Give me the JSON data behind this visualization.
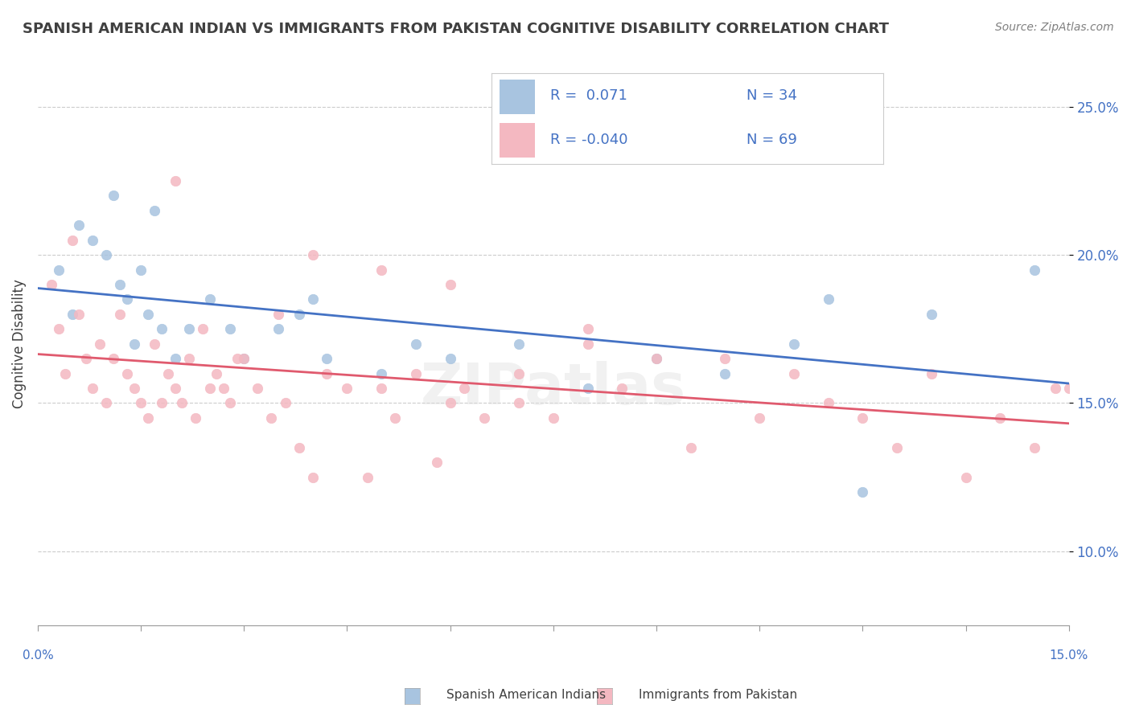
{
  "title": "SPANISH AMERICAN INDIAN VS IMMIGRANTS FROM PAKISTAN COGNITIVE DISABILITY CORRELATION CHART",
  "source": "Source: ZipAtlas.com",
  "ylabel": "Cognitive Disability",
  "xlim": [
    0.0,
    15.0
  ],
  "ylim": [
    7.5,
    26.5
  ],
  "yticks": [
    10.0,
    15.0,
    20.0,
    25.0
  ],
  "ytick_labels": [
    "10.0%",
    "15.0%",
    "20.0%",
    "25.0%"
  ],
  "series1_color": "#a8c4e0",
  "series1_line_color": "#4472c4",
  "series1_R": 0.071,
  "series1_N": 34,
  "series2_color": "#f4b8c1",
  "series2_line_color": "#e05a6e",
  "series2_R": -0.04,
  "series2_N": 69,
  "blue_scatter_x": [
    0.3,
    0.5,
    0.6,
    0.8,
    1.0,
    1.1,
    1.2,
    1.3,
    1.4,
    1.5,
    1.6,
    1.7,
    1.8,
    2.0,
    2.2,
    2.5,
    2.8,
    3.0,
    3.5,
    3.8,
    4.0,
    4.2,
    5.0,
    5.5,
    6.0,
    7.0,
    8.0,
    9.0,
    10.0,
    11.0,
    11.5,
    12.0,
    13.0,
    14.5
  ],
  "blue_scatter_y": [
    19.5,
    18.0,
    21.0,
    20.5,
    20.0,
    22.0,
    19.0,
    18.5,
    17.0,
    19.5,
    18.0,
    21.5,
    17.5,
    16.5,
    17.5,
    18.5,
    17.5,
    16.5,
    17.5,
    18.0,
    18.5,
    16.5,
    16.0,
    17.0,
    16.5,
    17.0,
    15.5,
    16.5,
    16.0,
    17.0,
    18.5,
    12.0,
    18.0,
    19.5
  ],
  "pink_scatter_x": [
    0.2,
    0.3,
    0.4,
    0.5,
    0.6,
    0.7,
    0.8,
    0.9,
    1.0,
    1.1,
    1.2,
    1.3,
    1.4,
    1.5,
    1.6,
    1.7,
    1.8,
    1.9,
    2.0,
    2.1,
    2.2,
    2.3,
    2.4,
    2.5,
    2.6,
    2.7,
    2.8,
    2.9,
    3.0,
    3.2,
    3.4,
    3.6,
    3.8,
    4.0,
    4.2,
    4.5,
    4.8,
    5.0,
    5.2,
    5.5,
    5.8,
    6.0,
    6.2,
    6.5,
    7.0,
    7.5,
    8.0,
    8.5,
    9.0,
    9.5,
    10.0,
    10.5,
    11.0,
    11.5,
    12.0,
    12.5,
    13.0,
    13.5,
    14.0,
    14.5,
    14.8,
    15.0,
    2.0,
    4.0,
    5.0,
    6.0,
    8.0,
    3.5,
    7.0
  ],
  "pink_scatter_y": [
    19.0,
    17.5,
    16.0,
    20.5,
    18.0,
    16.5,
    15.5,
    17.0,
    15.0,
    16.5,
    18.0,
    16.0,
    15.5,
    15.0,
    14.5,
    17.0,
    15.0,
    16.0,
    15.5,
    15.0,
    16.5,
    14.5,
    17.5,
    15.5,
    16.0,
    15.5,
    15.0,
    16.5,
    16.5,
    15.5,
    14.5,
    15.0,
    13.5,
    12.5,
    16.0,
    15.5,
    12.5,
    15.5,
    14.5,
    16.0,
    13.0,
    15.0,
    15.5,
    14.5,
    15.0,
    14.5,
    17.0,
    15.5,
    16.5,
    13.5,
    16.5,
    14.5,
    16.0,
    15.0,
    14.5,
    13.5,
    16.0,
    12.5,
    14.5,
    13.5,
    15.5,
    15.5,
    22.5,
    20.0,
    19.5,
    19.0,
    17.5,
    18.0,
    16.0
  ],
  "background_color": "#ffffff",
  "grid_color": "#cccccc",
  "title_color": "#404040",
  "axis_label_color": "#4472c4"
}
